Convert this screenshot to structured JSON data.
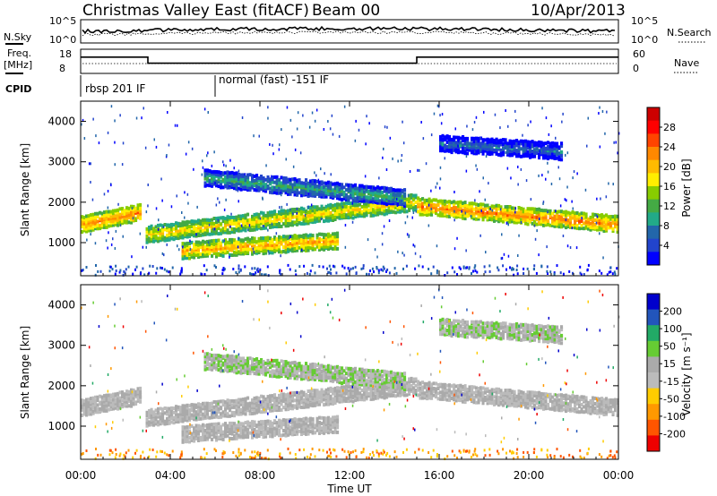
{
  "header": {
    "station": "Christmas Valley East (fitACF)",
    "beam": "Beam 00",
    "date": "10/Apr/2013"
  },
  "noise_panel": {
    "left_label": "N.Sky",
    "right_label": "N.Search",
    "left_ticks": [
      "10^5",
      "10^0"
    ],
    "right_ticks": [
      "10^5",
      "10^0"
    ]
  },
  "freq_panel": {
    "left_label_1": "Freq.",
    "left_label_2": "[MHz]",
    "right_label": "Nave",
    "left_ticks": [
      "18",
      "8"
    ],
    "right_ticks": [
      "60",
      "0"
    ],
    "freq_steps": [
      {
        "start_hour": 0,
        "end_hour": 3,
        "freq_mhz": 14.6
      },
      {
        "start_hour": 3,
        "end_hour": 15,
        "freq_mhz": 11.2
      },
      {
        "start_hour": 15,
        "end_hour": 24,
        "freq_mhz": 14.6
      }
    ]
  },
  "cpid": {
    "label": "CPID",
    "segments": [
      {
        "start_hour": 0,
        "text": "rbsp 201 IF"
      },
      {
        "start_hour": 6,
        "text": "normal (fast) -151 IF"
      }
    ]
  },
  "power_panel": {
    "ylabel": "Slant Range [km]",
    "yticks": [
      "1000",
      "2000",
      "3000",
      "4000"
    ],
    "colorbar_label": "Power [dB]",
    "colorbar_ticks": [
      "28",
      "24",
      "20",
      "16",
      "12",
      "8",
      "4"
    ],
    "colors": [
      "#cc0000",
      "#ff0000",
      "#ff4400",
      "#ff8800",
      "#ffbb00",
      "#ffee00",
      "#88cc00",
      "#44aa44",
      "#22aa88",
      "#2266aa",
      "#2244cc",
      "#0000ff"
    ]
  },
  "velocity_panel": {
    "ylabel": "Slant Range [km]",
    "yticks": [
      "1000",
      "2000",
      "3000",
      "4000"
    ],
    "colorbar_label": "Velocity [m s⁻¹]",
    "colorbar_ticks": [
      "200",
      "100",
      "50",
      "15",
      "-15",
      "-50",
      "-100",
      "-200"
    ],
    "colors": [
      "#0000cc",
      "#2255bb",
      "#22aa66",
      "#66cc33",
      "#aaaaaa",
      "#bbbbbb",
      "#ffcc00",
      "#ff9900",
      "#ff5500",
      "#ee0000"
    ]
  },
  "xaxis": {
    "ticks": [
      "00:00",
      "04:00",
      "08:00",
      "12:00",
      "16:00",
      "20:00",
      "00:00"
    ],
    "label": "Time UT"
  },
  "chart_data": {
    "type": "heatmap",
    "title": "Christmas Valley East (fitACF) Beam 00 10/Apr/2013",
    "xlabel": "Time UT",
    "ylabel": "Slant Range [km]",
    "xlim_hours": [
      0,
      24
    ],
    "ylim_km": [
      180,
      4500
    ],
    "power_scale_db": [
      0,
      30
    ],
    "velocity_scale_ms": [
      -200,
      200
    ],
    "echo_bands": [
      {
        "name": "main_band_early",
        "start_hour": 0,
        "end_hour": 2.7,
        "range_km_start": 1450,
        "range_km_end": 1750,
        "power_db": 22
      },
      {
        "name": "rising_band",
        "start_hour": 2.9,
        "end_hour": 15,
        "range_km_start": 1200,
        "range_km_end": 2000,
        "power_db": 18
      },
      {
        "name": "evening_band",
        "start_hour": 15,
        "end_hour": 24,
        "range_km_start": 1900,
        "range_km_end": 1450,
        "power_db": 22
      },
      {
        "name": "lower_day_band",
        "start_hour": 4.5,
        "end_hour": 11.5,
        "range_km_start": 800,
        "range_km_end": 1050,
        "power_db": 20
      },
      {
        "name": "upper_late_band",
        "start_hour": 16,
        "end_hour": 21.5,
        "range_km_start": 3450,
        "range_km_end": 3250,
        "power_db": 6
      },
      {
        "name": "arch",
        "start_hour": 5.5,
        "end_hour": 14.5,
        "range_km_start": 2600,
        "range_km_end": 2100,
        "power_db": 10
      }
    ]
  }
}
